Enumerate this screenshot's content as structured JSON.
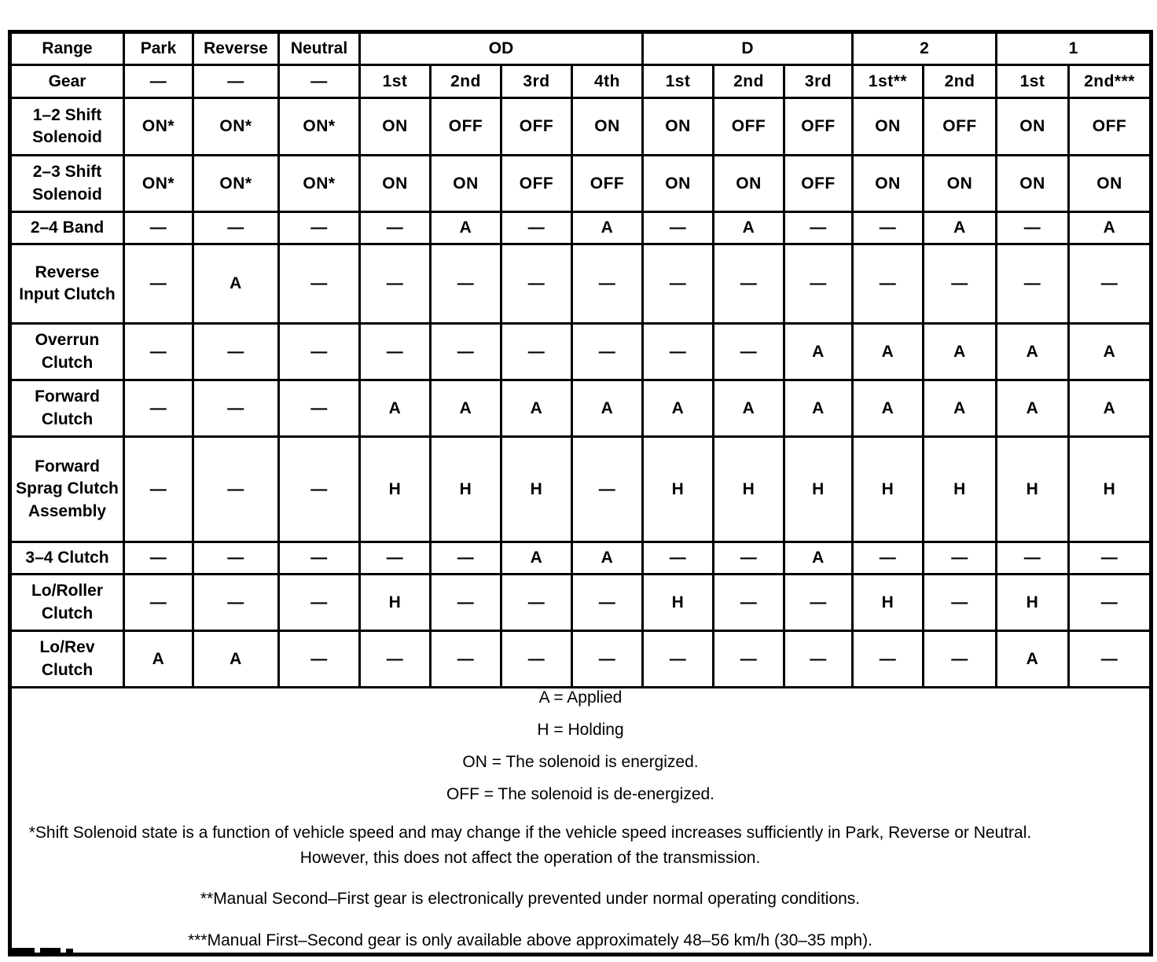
{
  "colors": {
    "ink": "#000000",
    "paper": "#ffffff"
  },
  "table": {
    "header": {
      "range_label": "Range",
      "gear_label": "Gear",
      "groups": [
        {
          "label": "Park",
          "span": 1
        },
        {
          "label": "Reverse",
          "span": 1
        },
        {
          "label": "Neutral",
          "span": 1
        },
        {
          "label": "OD",
          "span": 4
        },
        {
          "label": "D",
          "span": 3
        },
        {
          "label": "2",
          "span": 2
        },
        {
          "label": "1",
          "span": 2
        }
      ],
      "gear_row": [
        "—",
        "—",
        "—",
        "1st",
        "2nd",
        "3rd",
        "4th",
        "1st",
        "2nd",
        "3rd",
        "1st**",
        "2nd",
        "1st",
        "2nd***"
      ]
    },
    "rows": [
      {
        "label": "1–2 Shift Solenoid",
        "values": [
          "ON*",
          "ON*",
          "ON*",
          "ON",
          "OFF",
          "OFF",
          "ON",
          "ON",
          "OFF",
          "OFF",
          "ON",
          "OFF",
          "ON",
          "OFF"
        ]
      },
      {
        "label": "2–3 Shift Solenoid",
        "values": [
          "ON*",
          "ON*",
          "ON*",
          "ON",
          "ON",
          "OFF",
          "OFF",
          "ON",
          "ON",
          "OFF",
          "ON",
          "ON",
          "ON",
          "ON"
        ]
      },
      {
        "label": "2–4 Band",
        "values": [
          "—",
          "—",
          "—",
          "—",
          "A",
          "—",
          "A",
          "—",
          "A",
          "—",
          "—",
          "A",
          "—",
          "A"
        ]
      },
      {
        "label": "Reverse Input Clutch",
        "values": [
          "—",
          "A",
          "—",
          "—",
          "—",
          "—",
          "—",
          "—",
          "—",
          "—",
          "—",
          "—",
          "—",
          "—"
        ]
      },
      {
        "label": "Overrun Clutch",
        "values": [
          "—",
          "—",
          "—",
          "—",
          "—",
          "—",
          "—",
          "—",
          "—",
          "A",
          "A",
          "A",
          "A",
          "A"
        ]
      },
      {
        "label": "Forward Clutch",
        "values": [
          "—",
          "—",
          "—",
          "A",
          "A",
          "A",
          "A",
          "A",
          "A",
          "A",
          "A",
          "A",
          "A",
          "A"
        ]
      },
      {
        "label": "Forward Sprag Clutch Assembly",
        "values": [
          "—",
          "—",
          "—",
          "H",
          "H",
          "H",
          "—",
          "H",
          "H",
          "H",
          "H",
          "H",
          "H",
          "H"
        ]
      },
      {
        "label": "3–4 Clutch",
        "values": [
          "—",
          "—",
          "—",
          "—",
          "—",
          "A",
          "A",
          "—",
          "—",
          "A",
          "—",
          "—",
          "—",
          "—"
        ]
      },
      {
        "label": "Lo/Roller Clutch",
        "values": [
          "—",
          "—",
          "—",
          "H",
          "—",
          "—",
          "—",
          "H",
          "—",
          "—",
          "H",
          "—",
          "H",
          "—"
        ]
      },
      {
        "label": "Lo/Rev Clutch",
        "values": [
          "A",
          "A",
          "—",
          "—",
          "—",
          "—",
          "—",
          "—",
          "—",
          "—",
          "—",
          "—",
          "A",
          "—"
        ]
      }
    ],
    "legend": [
      "A = Applied",
      "H = Holding",
      "ON = The solenoid is energized.",
      "OFF = The solenoid is de-energized."
    ],
    "footnotes": [
      "*Shift Solenoid state is a function of vehicle speed and may change if the vehicle speed increases sufficiently in Park, Reverse or Neutral. However, this does not affect the operation of the transmission.",
      "**Manual Second–First gear is electronically prevented under normal operating conditions.",
      "***Manual First–Second gear is only available above approximately 48–56 km/h (30–35 mph)."
    ]
  }
}
